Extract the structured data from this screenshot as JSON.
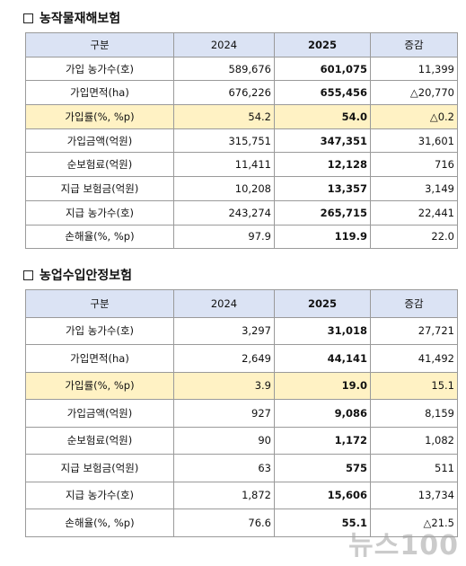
{
  "section1": {
    "title": "농작물재해보험",
    "header": [
      "구분",
      "2024",
      "2025",
      "증감"
    ],
    "rows": [
      [
        "가입 농가수(호)",
        "589,676",
        "601,075",
        "11,399"
      ],
      [
        "가입면적(ha)",
        "676,226",
        "655,456",
        "△20,770"
      ],
      [
        "가입률(%, %p)",
        "54.2",
        "54.0",
        "△0.2"
      ],
      [
        "가입금액(억원)",
        "315,751",
        "347,351",
        "31,601"
      ],
      [
        "순보험료(억원)",
        "11,411",
        "12,128",
        "716"
      ],
      [
        "지급 보험금(억원)",
        "10,208",
        "13,357",
        "3,149"
      ],
      [
        "지급 농가수(호)",
        "243,274",
        "265,715",
        "22,441"
      ],
      [
        "손해율(%, %p)",
        "97.9",
        "119.9",
        "22.0"
      ]
    ]
  },
  "section2": {
    "title": "농업수입안정보험",
    "header": [
      "구분",
      "2024",
      "2025",
      "증감"
    ],
    "rows": [
      [
        "가입 농가수(호)",
        "3,297",
        "31,018",
        "27,721"
      ],
      [
        "가입면적(ha)",
        "2,649",
        "44,141",
        "41,492"
      ],
      [
        "가입률(%, %p)",
        "3.9",
        "19.0",
        "15.1"
      ],
      [
        "가입금액(억원)",
        "927",
        "9,086",
        "8,159"
      ],
      [
        "순보험료(억원)",
        "90",
        "1,172",
        "1,082"
      ],
      [
        "지급 보험금(억원)",
        "63",
        "575",
        "511"
      ],
      [
        "지급 농가수(호)",
        "1,872",
        "15,606",
        "13,734"
      ],
      [
        "손해율(%, %p)",
        "76.6",
        "55.1",
        "△21.5"
      ]
    ]
  },
  "watermark": "뉴스100",
  "colors": {
    "header_bg": "#dbe3f4",
    "highlight_bg": "#fff2c4",
    "border": "#9a9a9a"
  }
}
